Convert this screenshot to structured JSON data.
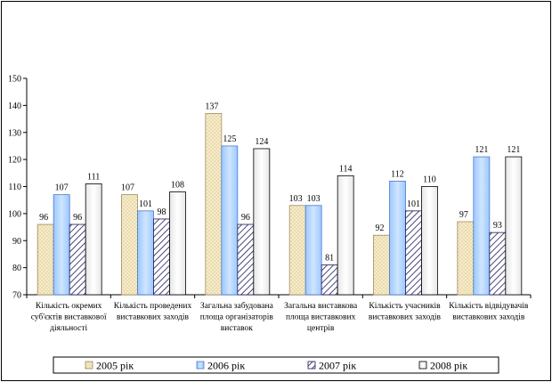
{
  "chart_data": {
    "type": "bar",
    "categories": [
      [
        "Кількість окремих",
        "суб'єктів виставкової",
        "діяльності"
      ],
      [
        "Кількість проведених",
        "виставкових заходів"
      ],
      [
        "Загальна забудована",
        "площа організаторів",
        "виставок"
      ],
      [
        "Загальна виставкова",
        "площа виставкових",
        "центрів"
      ],
      [
        "Кількість учасників",
        "виставкових заходів"
      ],
      [
        "Кількість відвідувачів",
        "виставкових заходів"
      ]
    ],
    "series": [
      {
        "name": "2005 рік",
        "values": [
          96,
          107,
          137,
          103,
          92,
          97
        ],
        "labels": [
          "96",
          "107",
          "137",
          "103",
          "92",
          "97"
        ]
      },
      {
        "name": "2006 рік",
        "values": [
          107,
          101,
          125,
          103,
          112,
          121
        ],
        "labels": [
          "107",
          "101",
          "125",
          "103",
          "112",
          "121"
        ]
      },
      {
        "name": "2007 рік",
        "values": [
          96,
          98,
          96,
          81,
          101,
          93
        ],
        "labels": [
          "96",
          "98",
          "96",
          "81",
          "101",
          "93"
        ]
      },
      {
        "name": "2008 рік",
        "values": [
          111,
          108,
          124,
          114,
          110,
          121
        ],
        "labels": [
          "111",
          "108",
          "124",
          "114",
          "110",
          "121"
        ]
      }
    ],
    "yticks": [
      "70",
      "80",
      "90",
      "100",
      "110",
      "120",
      "130",
      "140",
      "150"
    ],
    "ylim": [
      70,
      150
    ],
    "grid": false,
    "legend_position": "bottom"
  }
}
